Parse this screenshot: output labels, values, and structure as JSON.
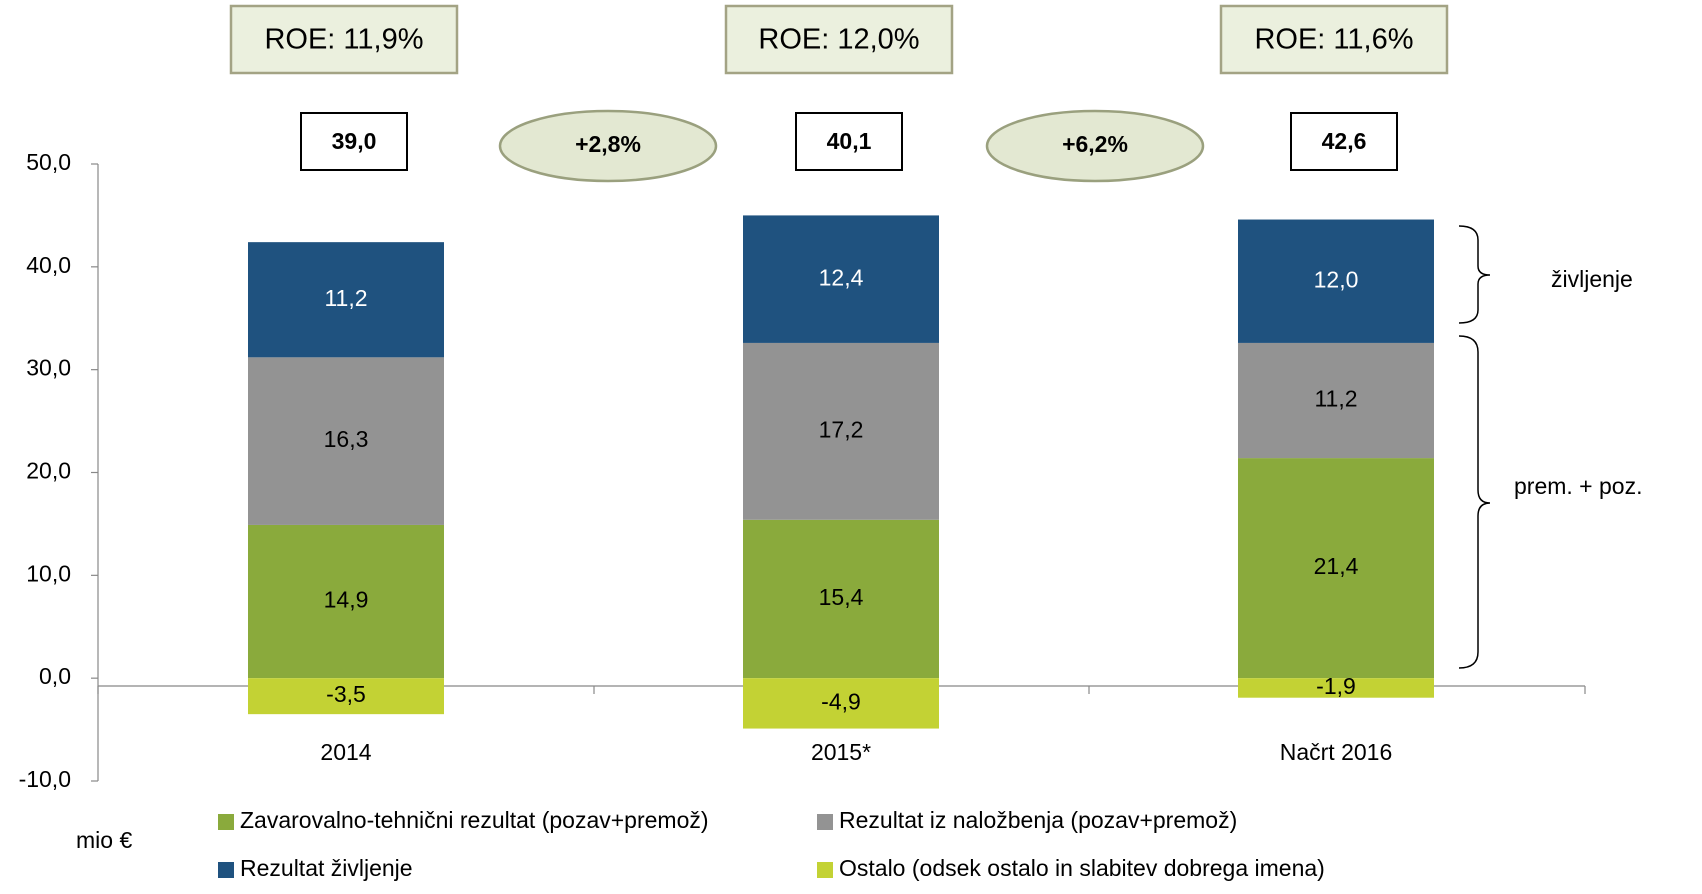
{
  "chart_data": {
    "type": "stacked_bar",
    "categories": [
      "2014",
      "2015*",
      "Načrt 2016"
    ],
    "series": [
      {
        "name": "Zavarovalno-tehnični rezultat (pozav+premož)",
        "color": "#8aaa3c",
        "label_color": "#000000",
        "values": [
          14.9,
          15.4,
          21.4
        ],
        "value_labels": [
          "14,9",
          "15,4",
          "21,4"
        ]
      },
      {
        "name": "Rezultat iz naložbenja (pozav+premož)",
        "color": "#939393",
        "label_color": "#000000",
        "values": [
          16.3,
          17.2,
          11.2
        ],
        "value_labels": [
          "16,3",
          "17,2",
          "11,2"
        ]
      },
      {
        "name": "Rezultat življenje",
        "color": "#1f527f",
        "label_color": "#ffffff",
        "values": [
          11.2,
          12.4,
          12.0
        ],
        "value_labels": [
          "11,2",
          "12,4",
          "12,0"
        ]
      },
      {
        "name": "Ostalo (odsek ostalo in slabitev dobrega imena)",
        "color": "#c3d234",
        "label_color": "#000000",
        "values": [
          -3.5,
          -4.9,
          -1.9
        ],
        "value_labels": [
          "-3,5",
          "-4,9",
          "-1,9"
        ]
      }
    ],
    "ylim": [
      -10,
      50
    ],
    "yticks": [
      {
        "value": -10,
        "label": "-10,0"
      },
      {
        "value": 0,
        "label": "0,0"
      },
      {
        "value": 10,
        "label": "10,0"
      },
      {
        "value": 20,
        "label": "20,0"
      },
      {
        "value": 30,
        "label": "30,0"
      },
      {
        "value": 40,
        "label": "40,0"
      },
      {
        "value": 50,
        "label": "50,0"
      }
    ],
    "y_unit": "mio €",
    "roe": [
      "ROE: 11,9%",
      "ROE: 12,0%",
      "ROE: 11,6%"
    ],
    "totals": {
      "values": [
        39.0,
        40.1,
        42.6
      ],
      "value_labels": [
        "39,0",
        "40,1",
        "42,6"
      ]
    },
    "growth": [
      "+2,8%",
      "+6,2%"
    ],
    "brackets": [
      "življenje",
      "prem. + poz."
    ],
    "legend": "bottom"
  }
}
